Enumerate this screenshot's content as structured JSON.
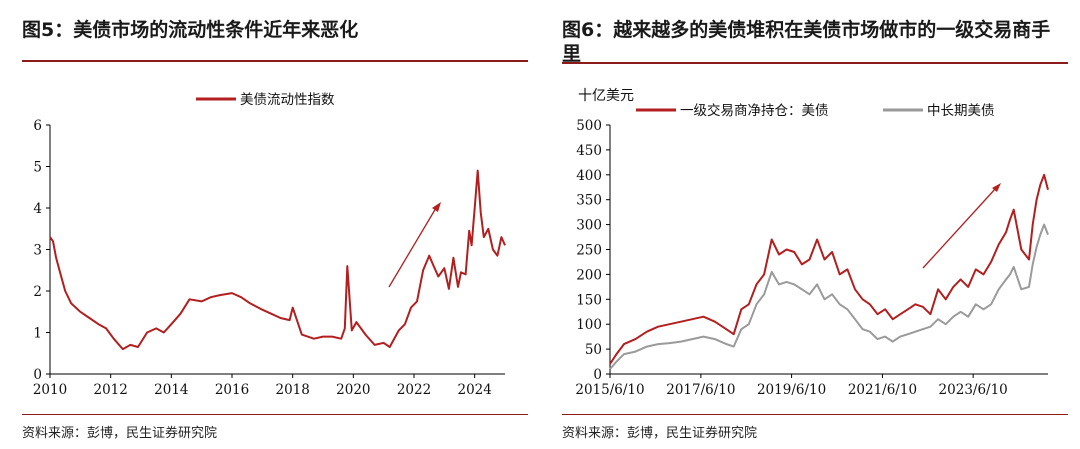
{
  "colors": {
    "red": "#b31f1f",
    "gray": "#9a9a9a",
    "rule": "#8c1c1c",
    "axis": "#000000"
  },
  "left": {
    "title": "图5：美债市场的流动性条件近年来恶化",
    "source": "资料来源：彭博，民生证券研究院"
  },
  "right": {
    "title": "图6：越来越多的美债堆积在美债市场做市的一级交易商手里",
    "source": "资料来源：彭博，民生证券研究院"
  },
  "chart_data": [
    {
      "type": "line",
      "title": "",
      "xlabel": "",
      "ylabel": "",
      "xlim": [
        2010,
        2025
      ],
      "ylim": [
        0,
        6
      ],
      "yticks": [
        0,
        1,
        2,
        3,
        4,
        5,
        6
      ],
      "xticks": [
        2010,
        2012,
        2014,
        2016,
        2018,
        2020,
        2022,
        2024
      ],
      "legend_position": "top-center",
      "annotation": "upward arrow",
      "series": [
        {
          "name": "美债流动性指数",
          "color": "#b31f1f",
          "x": [
            2010.0,
            2010.1,
            2010.2,
            2010.35,
            2010.5,
            2010.7,
            2011.0,
            2011.3,
            2011.6,
            2011.85,
            2012.1,
            2012.4,
            2012.65,
            2012.9,
            2013.2,
            2013.5,
            2013.75,
            2014.0,
            2014.3,
            2014.6,
            2015.0,
            2015.3,
            2015.6,
            2016.0,
            2016.3,
            2016.6,
            2017.0,
            2017.3,
            2017.6,
            2017.9,
            2018.0,
            2018.3,
            2018.7,
            2019.0,
            2019.3,
            2019.6,
            2019.72,
            2019.8,
            2019.95,
            2020.1,
            2020.4,
            2020.7,
            2021.0,
            2021.2,
            2021.5,
            2021.7,
            2021.9,
            2022.1,
            2022.3,
            2022.5,
            2022.65,
            2022.8,
            2023.0,
            2023.15,
            2023.3,
            2023.45,
            2023.55,
            2023.7,
            2023.82,
            2023.9,
            2024.0,
            2024.1,
            2024.2,
            2024.3,
            2024.45,
            2024.6,
            2024.75,
            2024.88,
            2025.0
          ],
          "values": [
            3.3,
            3.2,
            2.8,
            2.4,
            2.0,
            1.7,
            1.5,
            1.35,
            1.2,
            1.1,
            0.85,
            0.6,
            0.7,
            0.65,
            1.0,
            1.1,
            1.0,
            1.2,
            1.45,
            1.8,
            1.75,
            1.85,
            1.9,
            1.95,
            1.85,
            1.7,
            1.55,
            1.45,
            1.35,
            1.3,
            1.6,
            0.95,
            0.85,
            0.9,
            0.9,
            0.85,
            1.1,
            2.6,
            1.05,
            1.25,
            0.95,
            0.7,
            0.75,
            0.65,
            1.05,
            1.2,
            1.6,
            1.75,
            2.5,
            2.85,
            2.6,
            2.35,
            2.55,
            2.05,
            2.8,
            2.1,
            2.45,
            2.4,
            3.45,
            3.1,
            4.0,
            4.9,
            3.9,
            3.3,
            3.5,
            3.0,
            2.85,
            3.3,
            3.1
          ]
        }
      ]
    },
    {
      "type": "line",
      "title": "",
      "xlabel": "",
      "ylabel": "十亿美元",
      "xlim": [
        "2015/6/10",
        "2025/2/1"
      ],
      "ylim": [
        0,
        500
      ],
      "yticks": [
        0,
        50,
        100,
        150,
        200,
        250,
        300,
        350,
        400,
        450,
        500
      ],
      "xticks": [
        "2015/6/10",
        "2017/6/10",
        "2019/6/10",
        "2021/6/10",
        "2023/6/10"
      ],
      "legend_position": "top",
      "annotation": "upward arrow",
      "series": [
        {
          "name": "一级交易商净持仓：美债",
          "color": "#b31f1f",
          "x": [
            "2015/6/10",
            "2015/8/1",
            "2015/10/1",
            "2016/1/1",
            "2016/4/1",
            "2016/7/1",
            "2016/10/1",
            "2017/1/1",
            "2017/4/1",
            "2017/7/1",
            "2017/10/1",
            "2018/1/1",
            "2018/3/1",
            "2018/5/1",
            "2018/7/1",
            "2018/9/1",
            "2018/11/1",
            "2019/1/1",
            "2019/3/1",
            "2019/5/1",
            "2019/7/1",
            "2019/9/1",
            "2019/11/1",
            "2020/1/1",
            "2020/3/1",
            "2020/5/1",
            "2020/7/1",
            "2020/9/1",
            "2020/11/1",
            "2021/1/1",
            "2021/3/1",
            "2021/5/1",
            "2021/7/1",
            "2021/9/1",
            "2021/11/1",
            "2022/1/1",
            "2022/3/1",
            "2022/5/1",
            "2022/7/1",
            "2022/9/1",
            "2022/11/1",
            "2023/1/1",
            "2023/3/1",
            "2023/5/1",
            "2023/7/1",
            "2023/9/1",
            "2023/11/1",
            "2024/1/1",
            "2024/3/1",
            "2024/4/1",
            "2024/5/1",
            "2024/7/1",
            "2024/9/1",
            "2024/10/1",
            "2024/11/1",
            "2024/12/1",
            "2025/1/1",
            "2025/2/1"
          ],
          "values": [
            20,
            40,
            60,
            70,
            85,
            95,
            100,
            105,
            110,
            115,
            105,
            90,
            80,
            130,
            140,
            180,
            200,
            270,
            240,
            250,
            245,
            220,
            230,
            270,
            230,
            245,
            200,
            210,
            170,
            150,
            140,
            120,
            130,
            110,
            120,
            130,
            140,
            135,
            120,
            170,
            150,
            175,
            190,
            175,
            210,
            200,
            225,
            260,
            285,
            310,
            330,
            250,
            230,
            300,
            350,
            380,
            400,
            370
          ]
        },
        {
          "name": "中长期美债",
          "color": "#9a9a9a",
          "x": [
            "2015/6/10",
            "2015/8/1",
            "2015/10/1",
            "2016/1/1",
            "2016/4/1",
            "2016/7/1",
            "2016/10/1",
            "2017/1/1",
            "2017/4/1",
            "2017/7/1",
            "2017/10/1",
            "2018/1/1",
            "2018/3/1",
            "2018/5/1",
            "2018/7/1",
            "2018/9/1",
            "2018/11/1",
            "2019/1/1",
            "2019/3/1",
            "2019/5/1",
            "2019/7/1",
            "2019/9/1",
            "2019/11/1",
            "2020/1/1",
            "2020/3/1",
            "2020/5/1",
            "2020/7/1",
            "2020/9/1",
            "2020/11/1",
            "2021/1/1",
            "2021/3/1",
            "2021/5/1",
            "2021/7/1",
            "2021/9/1",
            "2021/11/1",
            "2022/1/1",
            "2022/3/1",
            "2022/5/1",
            "2022/7/1",
            "2022/9/1",
            "2022/11/1",
            "2023/1/1",
            "2023/3/1",
            "2023/5/1",
            "2023/7/1",
            "2023/9/1",
            "2023/11/1",
            "2024/1/1",
            "2024/3/1",
            "2024/4/1",
            "2024/5/1",
            "2024/7/1",
            "2024/9/1",
            "2024/10/1",
            "2024/11/1",
            "2024/12/1",
            "2025/1/1",
            "2025/2/1"
          ],
          "values": [
            10,
            25,
            40,
            45,
            55,
            60,
            62,
            65,
            70,
            75,
            70,
            60,
            55,
            90,
            100,
            140,
            160,
            205,
            180,
            185,
            180,
            170,
            160,
            180,
            150,
            160,
            140,
            130,
            110,
            90,
            85,
            70,
            75,
            65,
            75,
            80,
            85,
            90,
            95,
            110,
            100,
            115,
            125,
            115,
            140,
            130,
            140,
            170,
            190,
            200,
            215,
            170,
            175,
            220,
            255,
            280,
            300,
            280
          ]
        }
      ]
    }
  ]
}
